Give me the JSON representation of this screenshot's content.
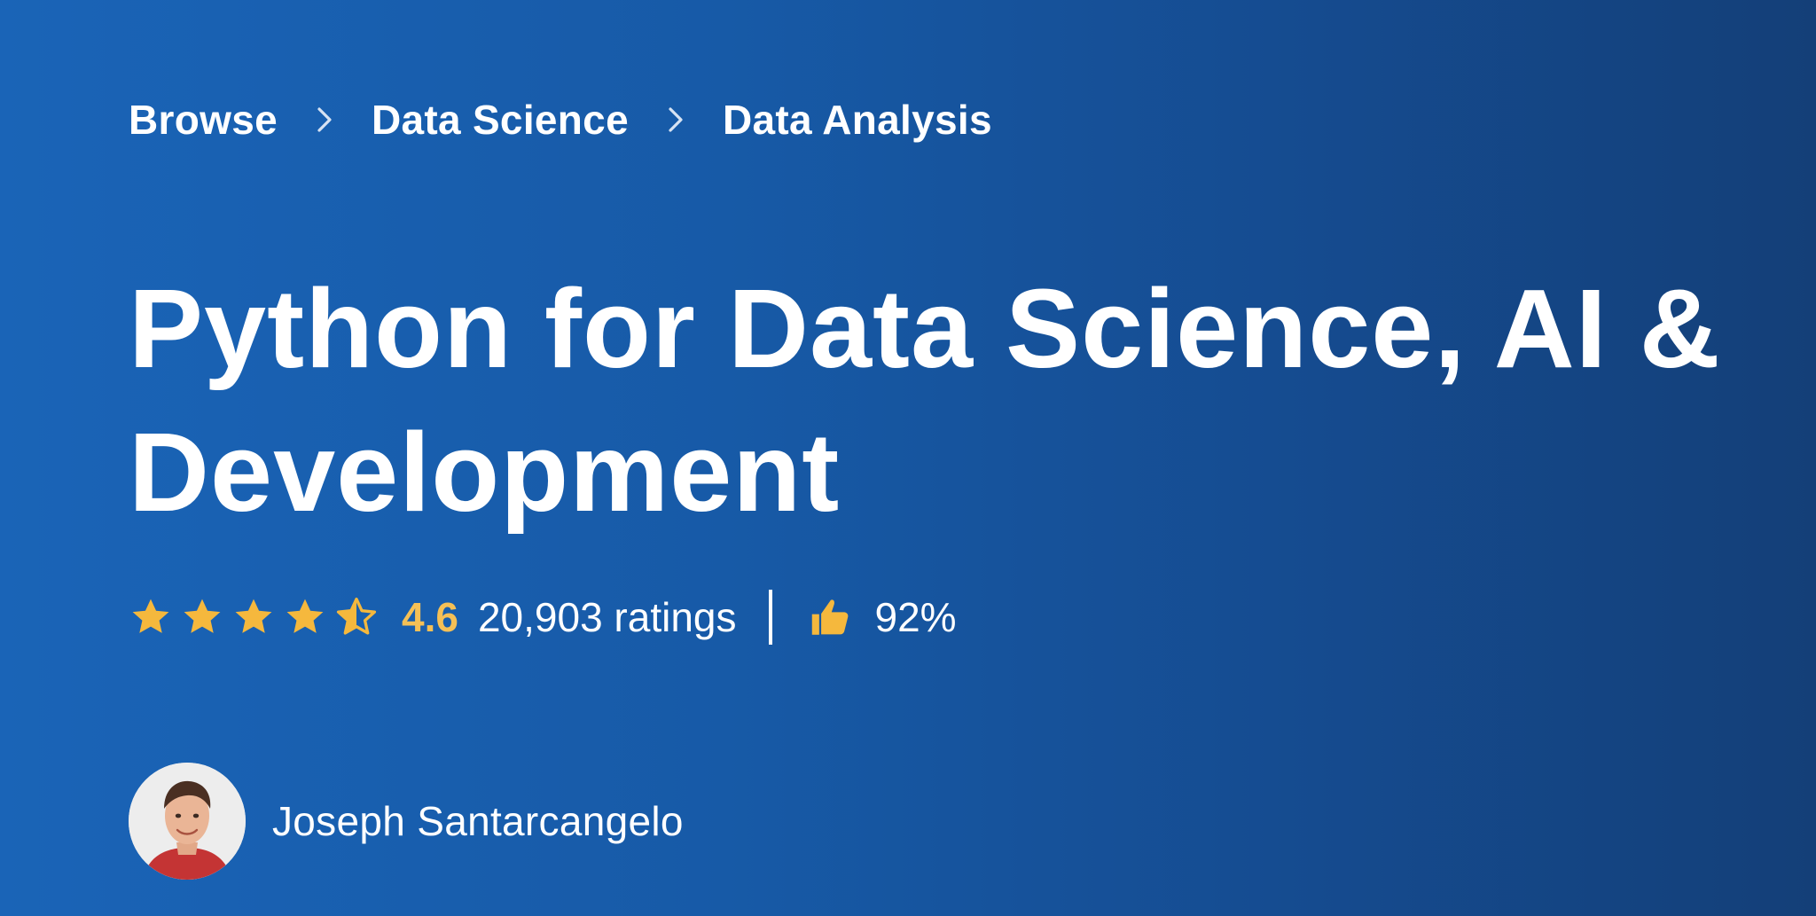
{
  "breadcrumb": {
    "items": [
      "Browse",
      "Data Science",
      "Data Analysis"
    ]
  },
  "course": {
    "title": "Python for Data Science, AI & Development"
  },
  "rating": {
    "value": "4.6",
    "stars": 4.5,
    "count_label": "20,903 ratings",
    "approval": "92%"
  },
  "instructor": {
    "name": "Joseph Santarcangelo"
  },
  "colors": {
    "background_start": "#1a64b7",
    "background_end": "#143f78",
    "star": "#f5b83d",
    "rating_value": "#f5c056",
    "text": "#ffffff"
  },
  "icons": {
    "breadcrumb_separator": "chevron-right-icon",
    "star": "star-icon",
    "half_star": "star-half-icon",
    "thumbs_up": "thumbs-up-icon"
  }
}
